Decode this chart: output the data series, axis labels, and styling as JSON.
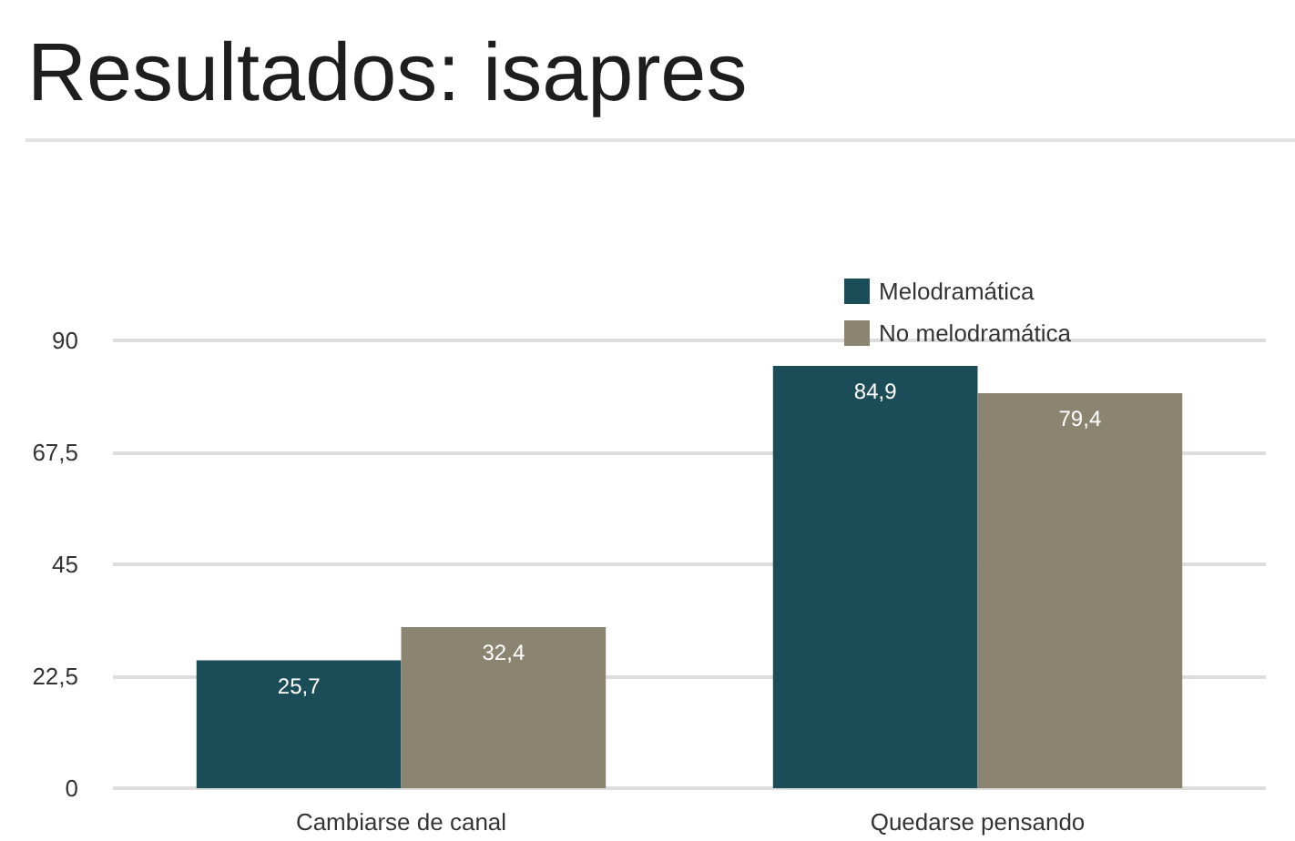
{
  "chart_data": {
    "type": "bar",
    "title": "Resultados: isapres",
    "categories": [
      "Cambiarse de canal",
      "Quedarse pensando"
    ],
    "series": [
      {
        "name": "Melodramática",
        "color": "#1b4d59",
        "values": [
          25.7,
          84.9
        ],
        "value_labels": [
          "25,7",
          "84,9"
        ]
      },
      {
        "name": "No melodramática",
        "color": "#8a8470",
        "values": [
          32.4,
          79.4
        ],
        "value_labels": [
          "32,4",
          "79,4"
        ]
      }
    ],
    "ylim": [
      0,
      90
    ],
    "yticks": [
      0,
      {
        "value": 22.5,
        "label": "22,5"
      },
      45,
      {
        "value": 67.5,
        "label": "67,5"
      },
      90
    ],
    "grid": "y",
    "legend": "top right"
  }
}
